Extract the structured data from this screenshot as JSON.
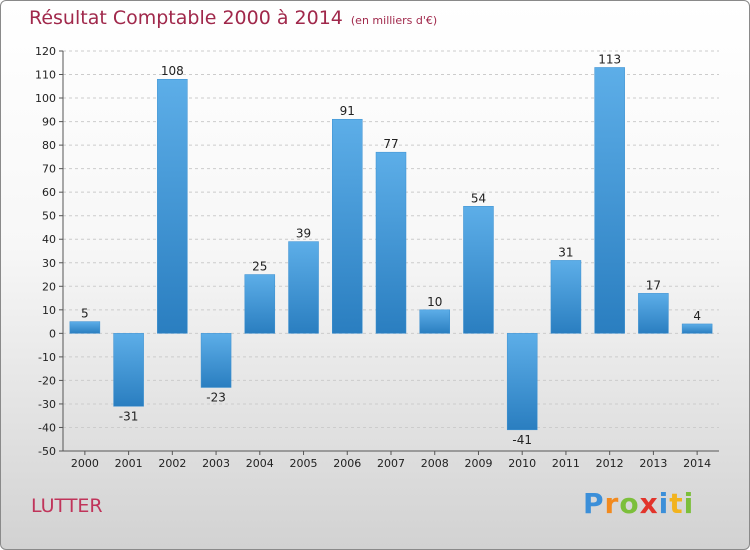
{
  "title": "Résultat Comptable 2000 à 2014",
  "subtitle": "(en milliers d'€)",
  "commune": "LUTTER",
  "logo": {
    "text": "Proxiti",
    "letters": [
      {
        "ch": "P",
        "color": "#3b8fd9"
      },
      {
        "ch": "r",
        "color": "#f28a1e"
      },
      {
        "ch": "o",
        "color": "#7cbf3a"
      },
      {
        "ch": "x",
        "color": "#e2342b"
      },
      {
        "ch": "i",
        "color": "#3b8fd9"
      },
      {
        "ch": "t",
        "color": "#f2b31e"
      },
      {
        "ch": "i",
        "color": "#7cbf3a"
      }
    ]
  },
  "colors": {
    "bar_light": "#5daee8",
    "bar_dark": "#2a7ec0",
    "title": "#a0284b",
    "grid": "#cccccc"
  },
  "chart_data": {
    "type": "bar",
    "categories": [
      "2000",
      "2001",
      "2002",
      "2003",
      "2004",
      "2005",
      "2006",
      "2007",
      "2008",
      "2009",
      "2010",
      "2011",
      "2012",
      "2013",
      "2014"
    ],
    "values": [
      5,
      -31,
      108,
      -23,
      25,
      39,
      91,
      77,
      10,
      54,
      -41,
      31,
      113,
      17,
      4
    ],
    "title": "Résultat Comptable 2000 à 2014",
    "subtitle": "(en milliers d'€)",
    "ylim": [
      -50,
      120
    ],
    "yticks": [
      120,
      110,
      100,
      90,
      80,
      70,
      60,
      50,
      40,
      30,
      20,
      10,
      0,
      -10,
      -20,
      -30,
      -40,
      -50
    ],
    "grid": "horizontal dashed",
    "data_labels": true
  }
}
